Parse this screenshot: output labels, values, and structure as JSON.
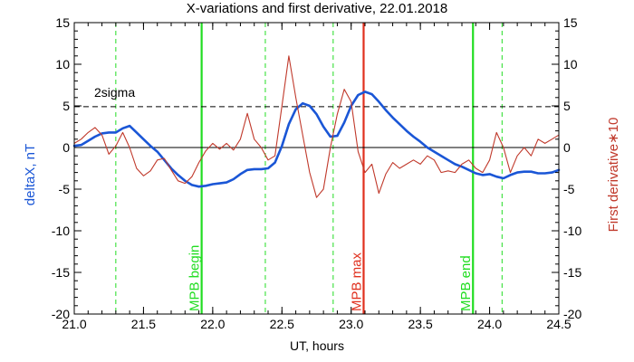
{
  "chart_data": {
    "type": "line",
    "title": "X-variations and first derivative, 22.01.2018",
    "xlabel": "UT, hours",
    "ylabel_left": "deltaX, nT",
    "ylabel_right": "First derivative∗10",
    "xlim": [
      21.0,
      24.5
    ],
    "ylim": [
      -20,
      15
    ],
    "x_ticks": [
      "21.0",
      "21.5",
      "22.0",
      "22.5",
      "23.0",
      "23.5",
      "24.0",
      "24.5"
    ],
    "y_ticks": [
      "-20",
      "-15",
      "-10",
      "-5",
      "0",
      "5",
      "10",
      "15"
    ],
    "grid": false,
    "sigma_level": 4.9,
    "sigma_label": "2sigma",
    "colors": {
      "deltaX": "#1a56d6",
      "derivative": "#c0392b",
      "mpb_begin_end": "#22dd22",
      "mpb_max": "#e0301e",
      "dashed_green": "#22dd22"
    },
    "series": [
      {
        "key": "deltaX",
        "x": [
          21.0,
          21.05,
          21.1,
          21.15,
          21.2,
          21.25,
          21.3,
          21.35,
          21.4,
          21.45,
          21.5,
          21.55,
          21.6,
          21.65,
          21.7,
          21.75,
          21.8,
          21.85,
          21.9,
          21.95,
          22.0,
          22.05,
          22.1,
          22.15,
          22.2,
          22.25,
          22.3,
          22.35,
          22.4,
          22.45,
          22.5,
          22.55,
          22.6,
          22.65,
          22.7,
          22.75,
          22.8,
          22.85,
          22.9,
          22.95,
          23.0,
          23.05,
          23.1,
          23.15,
          23.2,
          23.25,
          23.3,
          23.35,
          23.4,
          23.45,
          23.5,
          23.55,
          23.6,
          23.65,
          23.7,
          23.75,
          23.8,
          23.85,
          23.9,
          23.95,
          24.0,
          24.05,
          24.1,
          24.15,
          24.2,
          24.25,
          24.3,
          24.35,
          24.4,
          24.45,
          24.5
        ],
        "y": [
          0.2,
          0.3,
          0.8,
          1.3,
          1.7,
          1.8,
          1.8,
          2.3,
          2.6,
          1.8,
          1.0,
          0.2,
          -0.5,
          -1.5,
          -2.5,
          -3.3,
          -4.0,
          -4.5,
          -4.7,
          -4.6,
          -4.4,
          -4.3,
          -4.2,
          -3.8,
          -3.2,
          -2.7,
          -2.6,
          -2.6,
          -2.5,
          -1.8,
          0.2,
          2.8,
          4.6,
          5.3,
          5.0,
          4.0,
          2.5,
          1.3,
          1.4,
          3.0,
          5.0,
          6.3,
          6.7,
          6.4,
          5.5,
          4.5,
          3.6,
          2.8,
          2.0,
          1.3,
          0.7,
          0.0,
          -0.5,
          -1.0,
          -1.5,
          -2.0,
          -2.3,
          -2.7,
          -3.1,
          -3.3,
          -3.2,
          -3.5,
          -3.7,
          -3.3,
          -3.0,
          -2.9,
          -2.9,
          -3.1,
          -3.1,
          -3.0,
          -2.7
        ]
      },
      {
        "key": "derivative",
        "x": [
          21.0,
          21.05,
          21.1,
          21.15,
          21.2,
          21.25,
          21.3,
          21.35,
          21.4,
          21.45,
          21.5,
          21.55,
          21.6,
          21.65,
          21.7,
          21.75,
          21.8,
          21.85,
          21.9,
          21.95,
          22.0,
          22.05,
          22.1,
          22.15,
          22.2,
          22.25,
          22.3,
          22.35,
          22.4,
          22.45,
          22.5,
          22.55,
          22.6,
          22.65,
          22.7,
          22.75,
          22.8,
          22.85,
          22.9,
          22.95,
          23.0,
          23.05,
          23.1,
          23.15,
          23.2,
          23.25,
          23.3,
          23.35,
          23.4,
          23.45,
          23.5,
          23.55,
          23.6,
          23.65,
          23.7,
          23.75,
          23.8,
          23.85,
          23.9,
          23.95,
          24.0,
          24.05,
          24.1,
          24.15,
          24.2,
          24.25,
          24.3,
          24.35,
          24.4,
          24.45,
          24.5
        ],
        "y": [
          0.5,
          1.0,
          1.8,
          2.4,
          1.5,
          -0.8,
          0.2,
          1.8,
          0.0,
          -2.5,
          -3.4,
          -2.8,
          -1.5,
          -1.3,
          -2.7,
          -4.0,
          -4.3,
          -3.5,
          -1.8,
          -0.4,
          0.5,
          -0.2,
          0.5,
          -0.3,
          1.0,
          4.1,
          1.0,
          0.0,
          -1.5,
          -1.0,
          5.0,
          11.0,
          6.0,
          1.5,
          -3.0,
          -6.0,
          -5.0,
          0.0,
          4.0,
          7.0,
          5.5,
          -0.5,
          -3.0,
          -2.0,
          -5.5,
          -3.2,
          -1.8,
          -2.5,
          -2.0,
          -1.5,
          -2.0,
          -1.0,
          -1.5,
          -3.0,
          -2.8,
          -3.0,
          -2.0,
          -1.5,
          -2.5,
          -3.0,
          -1.5,
          1.8,
          0.0,
          -3.0,
          -1.0,
          0.0,
          -1.0,
          1.0,
          0.5,
          1.0,
          1.5
        ]
      }
    ],
    "vertical_markers": [
      {
        "x": 21.3,
        "style": "dashed",
        "color_key": "dashed_green",
        "label": ""
      },
      {
        "x": 21.92,
        "style": "solid",
        "color_key": "mpb_begin_end",
        "label": "MPB begin"
      },
      {
        "x": 22.38,
        "style": "dashed",
        "color_key": "dashed_green",
        "label": ""
      },
      {
        "x": 22.87,
        "style": "dashed",
        "color_key": "dashed_green",
        "label": ""
      },
      {
        "x": 23.09,
        "style": "solid",
        "color_key": "mpb_max",
        "label": "MPB max"
      },
      {
        "x": 23.88,
        "style": "solid",
        "color_key": "mpb_begin_end",
        "label": "MPB end"
      },
      {
        "x": 24.09,
        "style": "dashed",
        "color_key": "dashed_green",
        "label": ""
      }
    ]
  }
}
